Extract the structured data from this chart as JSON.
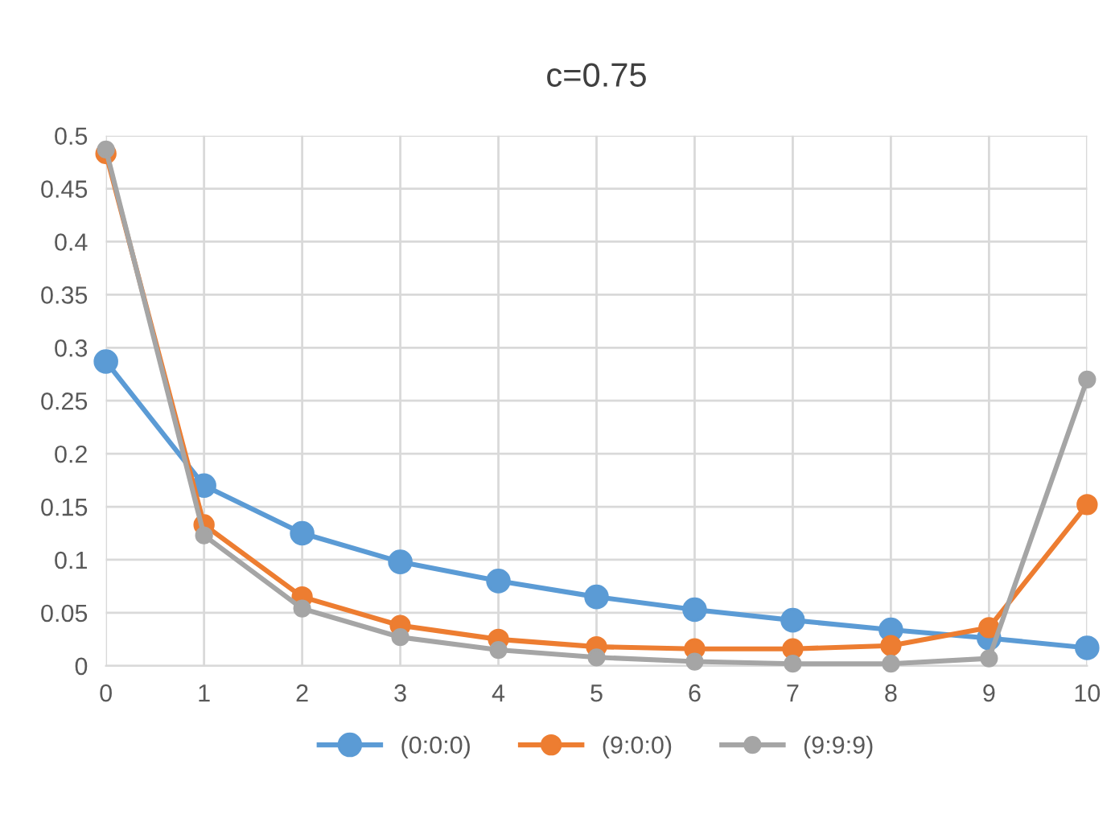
{
  "chart_data": {
    "type": "line",
    "title": "c=0.75",
    "categories": [
      "0",
      "1",
      "2",
      "3",
      "4",
      "5",
      "6",
      "7",
      "8",
      "9",
      "10"
    ],
    "series": [
      {
        "name": "(0:0:0)",
        "color": "#5b9bd5",
        "values": [
          0.287,
          0.17,
          0.125,
          0.098,
          0.08,
          0.065,
          0.053,
          0.043,
          0.034,
          0.026,
          0.017
        ]
      },
      {
        "name": "(9:0:0)",
        "color": "#ed7d31",
        "values": [
          0.483,
          0.133,
          0.065,
          0.038,
          0.025,
          0.018,
          0.016,
          0.016,
          0.019,
          0.036,
          0.152
        ]
      },
      {
        "name": "(9:9:9)",
        "color": "#a5a5a5",
        "values": [
          0.487,
          0.123,
          0.054,
          0.027,
          0.015,
          0.008,
          0.004,
          0.002,
          0.002,
          0.007,
          0.27
        ]
      }
    ],
    "ylim": [
      0,
      0.5
    ],
    "yticks": [
      0,
      0.05,
      0.1,
      0.15,
      0.2,
      0.25,
      0.3,
      0.35,
      0.4,
      0.45,
      0.5
    ],
    "grid": true,
    "legend": "bottom",
    "marker": "circle",
    "line_style": "solid"
  }
}
